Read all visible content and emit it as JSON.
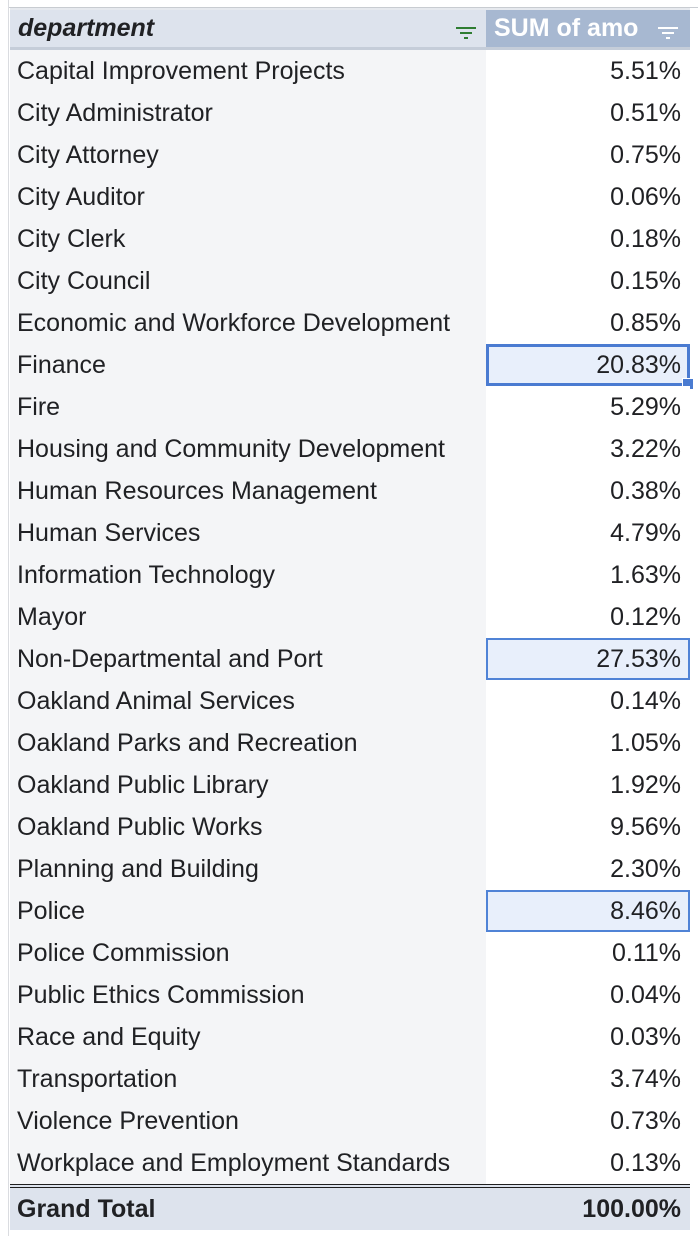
{
  "header": {
    "department_label": "department",
    "sum_label": "SUM of amo",
    "filter_icon": "filter-icon"
  },
  "rows": [
    {
      "department": "Capital Improvement Projects",
      "value": "5.51%"
    },
    {
      "department": "City Administrator",
      "value": "0.51%"
    },
    {
      "department": "City Attorney",
      "value": "0.75%"
    },
    {
      "department": "City Auditor",
      "value": "0.06%"
    },
    {
      "department": "City Clerk",
      "value": "0.18%"
    },
    {
      "department": "City Council",
      "value": "0.15%"
    },
    {
      "department": "Economic and Workforce Development",
      "value": "0.85%"
    },
    {
      "department": "Finance",
      "value": "20.83%"
    },
    {
      "department": "Fire",
      "value": "5.29%"
    },
    {
      "department": "Housing and Community Development",
      "value": "3.22%"
    },
    {
      "department": "Human Resources Management",
      "value": "0.38%"
    },
    {
      "department": "Human Services",
      "value": "4.79%"
    },
    {
      "department": "Information Technology",
      "value": "1.63%"
    },
    {
      "department": "Mayor",
      "value": "0.12%"
    },
    {
      "department": "Non-Departmental and Port",
      "value": "27.53%"
    },
    {
      "department": "Oakland Animal Services",
      "value": "0.14%"
    },
    {
      "department": "Oakland Parks and Recreation",
      "value": "1.05%"
    },
    {
      "department": "Oakland Public Library",
      "value": "1.92%"
    },
    {
      "department": "Oakland Public Works",
      "value": "9.56%"
    },
    {
      "department": "Planning and Building",
      "value": "2.30%"
    },
    {
      "department": "Police",
      "value": "8.46%"
    },
    {
      "department": "Police Commission",
      "value": "0.11%"
    },
    {
      "department": "Public Ethics Commission",
      "value": "0.04%"
    },
    {
      "department": "Race and Equity",
      "value": "0.03%"
    },
    {
      "department": "Transportation",
      "value": "3.74%"
    },
    {
      "department": "Violence Prevention",
      "value": "0.73%"
    },
    {
      "department": "Workplace and Employment Standards",
      "value": "0.13%"
    }
  ],
  "total": {
    "label": "Grand Total",
    "value": "100.00%"
  },
  "colors": {
    "header_bg": "#dde3ed",
    "sum_header_bg": "#a7b8d1",
    "selection_border": "#4a7bd1",
    "selection_fill": "#e8effb",
    "filter_icon_color": "#2e7d32"
  }
}
